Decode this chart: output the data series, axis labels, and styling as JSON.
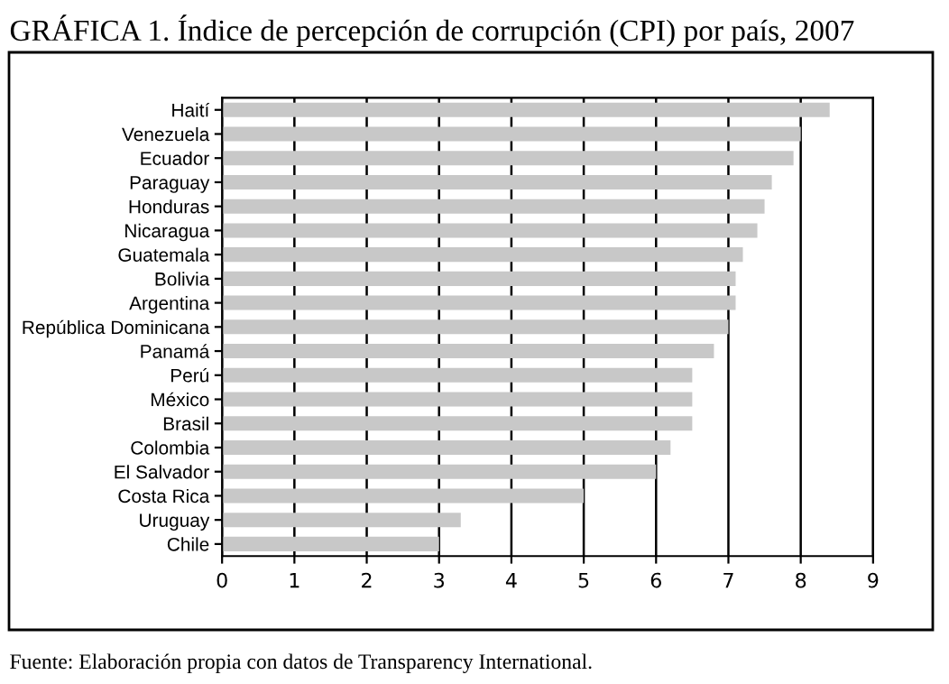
{
  "chart_data": {
    "type": "bar",
    "orientation": "horizontal",
    "title": "GRÁFICA 1. Índice de percepción de corrupción (CPI) por país, 2007",
    "categories": [
      "Haití",
      "Venezuela",
      "Ecuador",
      "Paraguay",
      "Honduras",
      "Nicaragua",
      "Guatemala",
      "Bolivia",
      "Argentina",
      "República Dominicana",
      "Panamá",
      "Perú",
      "México",
      "Brasil",
      "Colombia",
      "El Salvador",
      "Costa Rica",
      "Uruguay",
      "Chile"
    ],
    "values": [
      8.4,
      8.0,
      7.9,
      7.6,
      7.5,
      7.4,
      7.2,
      7.1,
      7.1,
      7.0,
      6.8,
      6.5,
      6.5,
      6.5,
      6.2,
      6.0,
      5.0,
      3.3,
      3.0
    ],
    "color": "#c8c8c8",
    "xlim": [
      0,
      9
    ],
    "xticks": [
      0,
      1,
      2,
      3,
      4,
      5,
      6,
      7,
      8,
      9
    ],
    "grid": "x",
    "annotations": [
      "Fuente: Elaboración propia con datos de Transparency International."
    ]
  }
}
